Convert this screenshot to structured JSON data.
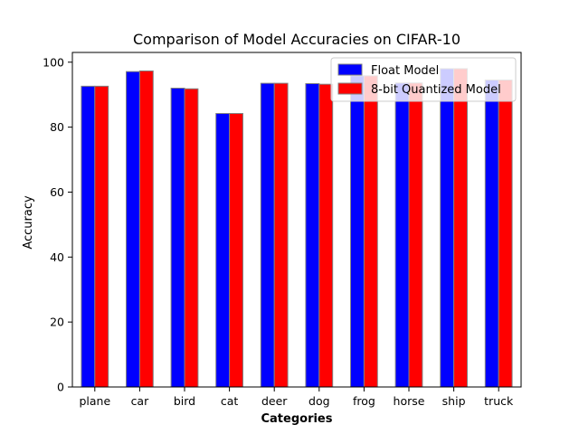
{
  "chart_data": {
    "type": "bar",
    "title": "Comparison of Model Accuracies on CIFAR-10",
    "xlabel": "Categories",
    "ylabel": "Accuracy",
    "ylim": [
      0,
      103
    ],
    "yticks": [
      0,
      20,
      40,
      60,
      80,
      100
    ],
    "categories": [
      "plane",
      "car",
      "bird",
      "cat",
      "deer",
      "dog",
      "frog",
      "horse",
      "ship",
      "truck"
    ],
    "series": [
      {
        "name": "Float Model",
        "color": "#0000ff",
        "values": [
          92.6,
          97.1,
          92.0,
          84.2,
          93.5,
          93.4,
          95.8,
          93.6,
          98.0,
          94.5
        ]
      },
      {
        "name": "8-bit Quantized Model",
        "color": "#ff0000",
        "values": [
          92.6,
          97.3,
          91.8,
          84.2,
          93.5,
          93.2,
          95.8,
          93.6,
          98.0,
          94.5
        ]
      }
    ],
    "bar_edge_color": "#808080",
    "legend_position": "upper-right",
    "grid": false
  }
}
